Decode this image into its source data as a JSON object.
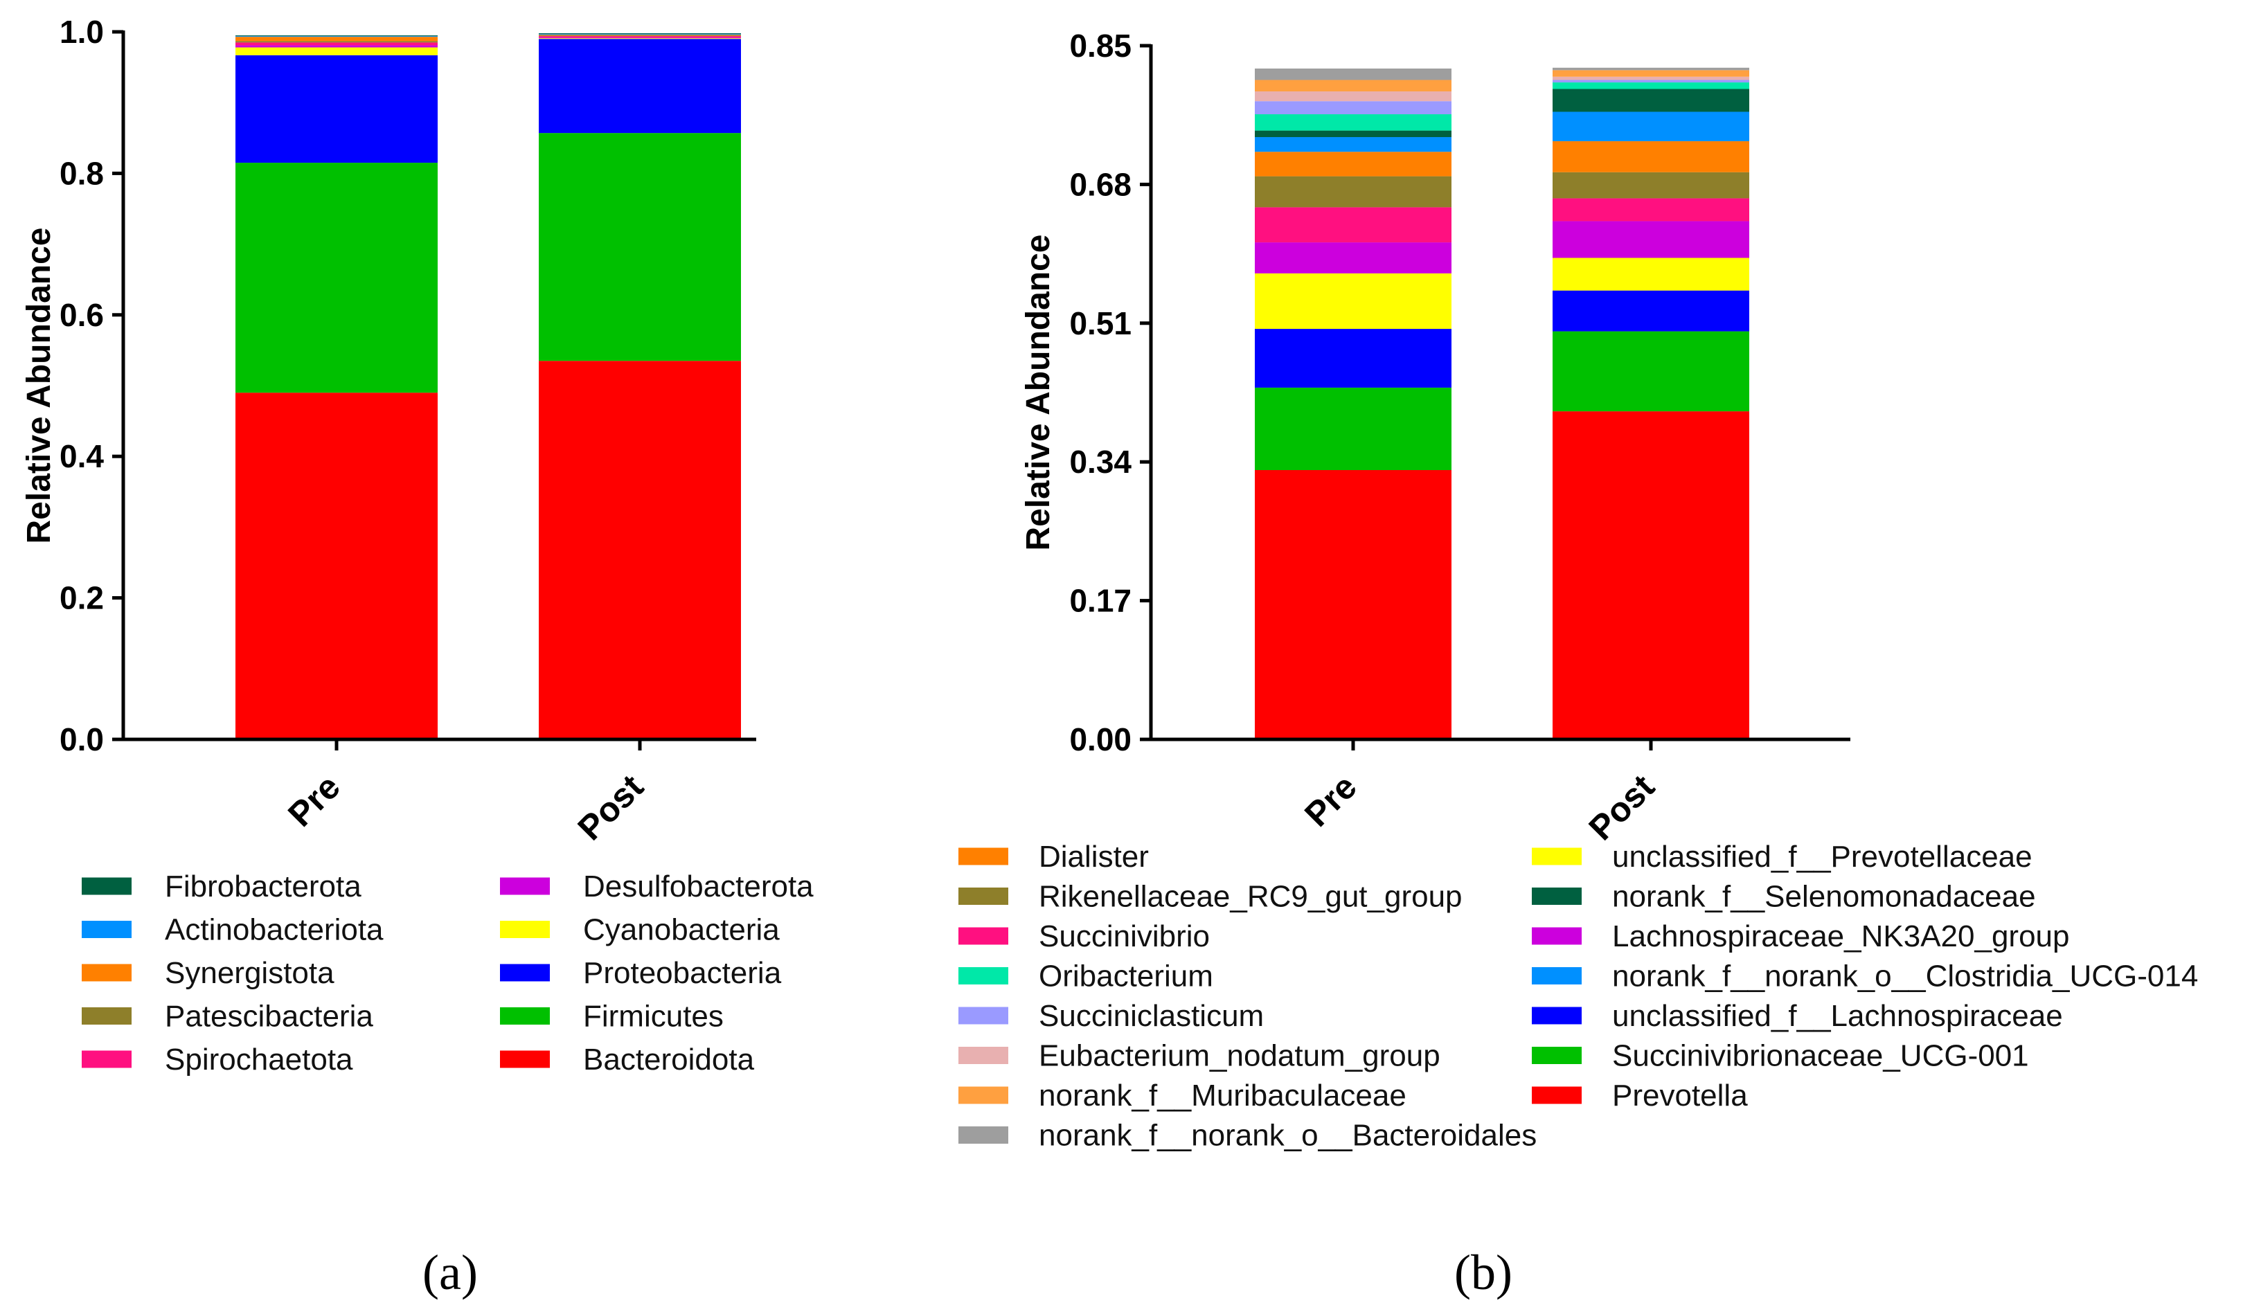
{
  "chart_data": [
    {
      "type": "bar",
      "stacked": true,
      "panel_label": "(a)",
      "ylabel": "Relative Abundance",
      "ylim": [
        0,
        1.0
      ],
      "yticks": [
        "0.0",
        "0.2",
        "0.4",
        "0.6",
        "0.8",
        "1.0"
      ],
      "categories": [
        "Pre",
        "Post"
      ],
      "series": [
        {
          "name": "Bacteroidota",
          "color": "#ff0000",
          "values": [
            0.49,
            0.535
          ]
        },
        {
          "name": "Firmicutes",
          "color": "#00c000",
          "values": [
            0.325,
            0.322
          ]
        },
        {
          "name": "Proteobacteria",
          "color": "#0000ff",
          "values": [
            0.152,
            0.133
          ]
        },
        {
          "name": "Cyanobacteria",
          "color": "#ffff00",
          "values": [
            0.011,
            0.001
          ]
        },
        {
          "name": "Desulfobacterota",
          "color": "#cc00dd",
          "values": [
            0.003,
            0.001
          ]
        },
        {
          "name": "Spirochaetota",
          "color": "#ff1080",
          "values": [
            0.004,
            0.002
          ]
        },
        {
          "name": "Patescibacteria",
          "color": "#8e7f2a",
          "values": [
            0.002,
            0.001
          ]
        },
        {
          "name": "Synergistota",
          "color": "#ff8000",
          "values": [
            0.006,
            0.001
          ]
        },
        {
          "name": "Actinobacteriota",
          "color": "#0090ff",
          "values": [
            0.001,
            0.001
          ]
        },
        {
          "name": "Fibrobacterota",
          "color": "#006040",
          "values": [
            0.001,
            0.001
          ]
        }
      ],
      "legend_columns": [
        [
          "Fibrobacterota",
          "Actinobacteriota",
          "Synergistota",
          "Patescibacteria",
          "Spirochaetota"
        ],
        [
          "Desulfobacterota",
          "Cyanobacteria",
          "Proteobacteria",
          "Firmicutes",
          "Bacteroidota"
        ]
      ]
    },
    {
      "type": "bar",
      "stacked": true,
      "panel_label": "(b)",
      "ylabel": "Relative Abundance",
      "ylim": [
        0,
        0.85
      ],
      "yticks": [
        "0.00",
        "0.17",
        "0.34",
        "0.51",
        "0.68",
        "0.85"
      ],
      "categories": [
        "Pre",
        "Post"
      ],
      "series": [
        {
          "name": "Prevotella",
          "color": "#ff0000",
          "values": [
            0.33,
            0.402
          ]
        },
        {
          "name": "Succinivibrionaceae_UCG-001",
          "color": "#00c000",
          "values": [
            0.101,
            0.098
          ]
        },
        {
          "name": "unclassified_f__Lachnospiraceae",
          "color": "#0000ff",
          "values": [
            0.072,
            0.05
          ]
        },
        {
          "name": "unclassified_f__Prevotellaceae",
          "color": "#ffff00",
          "values": [
            0.068,
            0.04
          ]
        },
        {
          "name": "Lachnospiraceae_NK3A20_group",
          "color": "#cc00dd",
          "values": [
            0.038,
            0.045
          ]
        },
        {
          "name": "Succinivibrio",
          "color": "#ff1080",
          "values": [
            0.043,
            0.028
          ]
        },
        {
          "name": "Rikenellaceae_RC9_gut_group",
          "color": "#8e7f2a",
          "values": [
            0.038,
            0.032
          ]
        },
        {
          "name": "Dialister",
          "color": "#ff8000",
          "values": [
            0.03,
            0.038
          ]
        },
        {
          "name": "norank_f__norank_o__Clostridia_UCG-014",
          "color": "#0090ff",
          "values": [
            0.018,
            0.036
          ]
        },
        {
          "name": "norank_f__Selenomonadaceae",
          "color": "#006040",
          "values": [
            0.008,
            0.028
          ]
        },
        {
          "name": "Oribacterium",
          "color": "#00e8a8",
          "values": [
            0.02,
            0.008
          ]
        },
        {
          "name": "Succiniclasticum",
          "color": "#9a9aff",
          "values": [
            0.016,
            0.003
          ]
        },
        {
          "name": "Eubacterium_nodatum_group",
          "color": "#e8b0b0",
          "values": [
            0.012,
            0.004
          ]
        },
        {
          "name": "norank_f__Muribaculaceae",
          "color": "#ffa040",
          "values": [
            0.014,
            0.008
          ]
        },
        {
          "name": "norank_f__norank_o__Bacteroidales",
          "color": "#9e9e9e",
          "values": [
            0.014,
            0.003
          ]
        }
      ],
      "legend_columns": [
        [
          "Dialister",
          "Rikenellaceae_RC9_gut_group",
          "Succinivibrio",
          "Oribacterium",
          "Succiniclasticum",
          "Eubacterium_nodatum_group",
          "norank_f__Muribaculaceae",
          "norank_f__norank_o__Bacteroidales"
        ],
        [
          "unclassified_f__Prevotellaceae",
          "norank_f__Selenomonadaceae",
          "Lachnospiraceae_NK3A20_group",
          "norank_f__norank_o__Clostridia_UCG-014",
          "unclassified_f__Lachnospiraceae",
          "Succinivibrionaceae_UCG-001",
          "Prevotella"
        ]
      ]
    }
  ]
}
